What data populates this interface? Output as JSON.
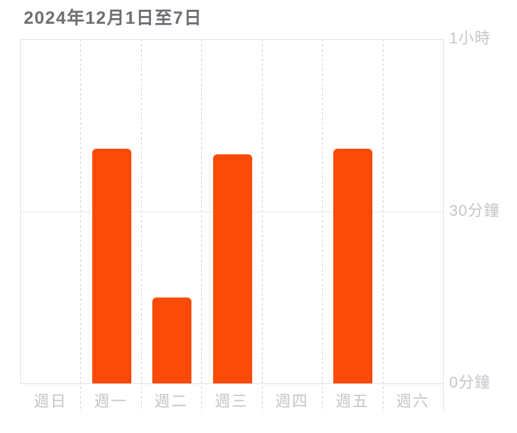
{
  "title": "2024年12月1日至7日",
  "colors": {
    "bar": "#fc4a08",
    "title_text": "#6d6d72",
    "axis_text": "#c5c5ca",
    "grid_solid": "#e2e2e7",
    "grid_dashed": "#d5d5da"
  },
  "chart_data": {
    "type": "bar",
    "title": "2024年12月1日至7日",
    "categories": [
      "週日",
      "週一",
      "週二",
      "週三",
      "週四",
      "週五",
      "週六"
    ],
    "values": [
      0,
      41,
      15,
      40,
      0,
      41,
      0
    ],
    "unit": "minutes",
    "ylim": [
      0,
      60
    ],
    "y_ticks": [
      0,
      30,
      60
    ],
    "y_tick_labels": [
      "0分鐘",
      "30分鐘",
      "1小時"
    ],
    "y_axis_side": "right",
    "legend": "none",
    "grid": "dashed vertical day separators, solid lines at 0/30/60 min"
  }
}
